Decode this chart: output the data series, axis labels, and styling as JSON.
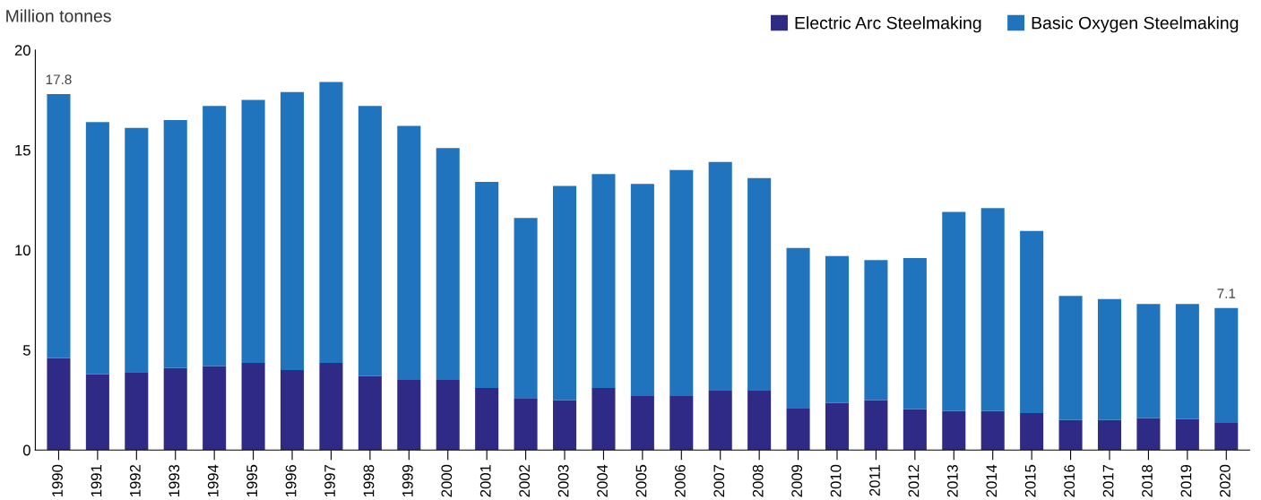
{
  "chart_data": {
    "type": "bar",
    "stacked": true,
    "ylabel": "Million tonnes",
    "legend": "top right",
    "grid": false,
    "categories": [
      "1990",
      "1991",
      "1992",
      "1993",
      "1994",
      "1995",
      "1996",
      "1997",
      "1998",
      "1999",
      "2000",
      "2001",
      "2002",
      "2003",
      "2004",
      "2005",
      "2006",
      "2007",
      "2008",
      "2009",
      "2010",
      "2011",
      "2012",
      "2013",
      "2014",
      "2015",
      "2016",
      "2017",
      "2018",
      "2019",
      "2020"
    ],
    "series": [
      {
        "name": "Electric Arc Steelmaking",
        "color": "#2e2a85",
        "values": [
          4.6,
          3.8,
          3.9,
          4.1,
          4.2,
          4.35,
          4.0,
          4.35,
          3.7,
          3.5,
          3.5,
          3.1,
          2.6,
          2.5,
          3.1,
          2.7,
          2.7,
          3.0,
          3.0,
          2.1,
          2.35,
          2.5,
          2.05,
          1.95,
          1.95,
          1.85,
          1.5,
          1.5,
          1.6,
          1.55,
          1.35
        ]
      },
      {
        "name": "Basic Oxygen Steelmaking",
        "color": "#1f74bd",
        "values": [
          13.2,
          12.6,
          12.2,
          12.4,
          13.0,
          13.15,
          13.9,
          14.05,
          13.5,
          12.7,
          11.6,
          10.3,
          9.0,
          10.7,
          10.7,
          10.6,
          11.3,
          11.4,
          10.6,
          8.0,
          7.35,
          7.0,
          7.55,
          9.95,
          10.15,
          9.1,
          6.2,
          6.05,
          5.7,
          5.75,
          5.75
        ]
      }
    ],
    "totals": [
      "17.8",
      null,
      null,
      null,
      null,
      null,
      null,
      null,
      null,
      null,
      null,
      null,
      null,
      null,
      null,
      null,
      null,
      null,
      null,
      null,
      null,
      null,
      null,
      null,
      null,
      null,
      null,
      null,
      null,
      null,
      "7.1"
    ],
    "ylim": [
      0,
      20
    ],
    "yticks": [
      0,
      5,
      10,
      15,
      20
    ]
  }
}
